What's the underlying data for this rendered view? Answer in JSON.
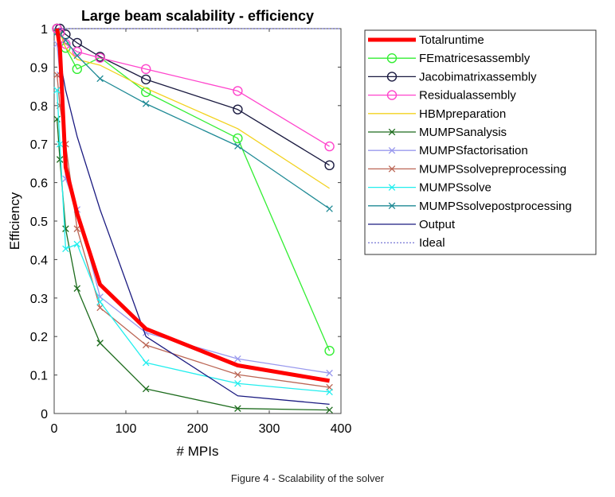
{
  "caption": "Figure 4 - Scalability of the solver",
  "chart_data": {
    "type": "line",
    "title": "Large beam scalability - efficiency",
    "xlabel": "# MPIs",
    "ylabel": "Efficiency",
    "xlim": [
      0,
      400
    ],
    "ylim": [
      0,
      1
    ],
    "xticks": [
      0,
      100,
      200,
      300,
      400
    ],
    "yticks": [
      0,
      0.1,
      0.2,
      0.3,
      0.4,
      0.5,
      0.6,
      0.7,
      0.8,
      0.9,
      1
    ],
    "grid": false,
    "legend_position": "outside-right",
    "x": [
      4,
      8,
      16,
      32,
      64,
      128,
      256,
      384
    ],
    "series": [
      {
        "name": "Totalruntime",
        "color": "#ff0000",
        "marker": "none",
        "width": 5,
        "values": [
          1.0,
          0.95,
          0.64,
          0.52,
          0.335,
          0.22,
          0.125,
          0.085
        ]
      },
      {
        "name": "FEmatricesassembly",
        "color": "#33ee33",
        "marker": "o",
        "width": 1.3,
        "values": [
          1.0,
          0.99,
          0.95,
          0.895,
          0.925,
          0.835,
          0.715,
          0.163
        ]
      },
      {
        "name": "Jacobimatrixassembly",
        "color": "#1a1a40",
        "marker": "o",
        "width": 1.3,
        "values": [
          1.0,
          1.0,
          0.985,
          0.963,
          0.927,
          0.868,
          0.79,
          0.645
        ]
      },
      {
        "name": "Residualassembly",
        "color": "#ff44cc",
        "marker": "o",
        "width": 1.3,
        "values": [
          1.0,
          0.99,
          0.96,
          0.94,
          0.924,
          0.895,
          0.838,
          0.694
        ]
      },
      {
        "name": "HBMpreparation",
        "color": "#f2d21f",
        "marker": "none",
        "width": 1.3,
        "values": [
          1.0,
          0.99,
          0.95,
          0.92,
          0.905,
          0.845,
          0.74,
          0.585
        ]
      },
      {
        "name": "MUMPSanalysis",
        "color": "#1c6b1c",
        "marker": "x",
        "width": 1.3,
        "values": [
          0.765,
          0.66,
          0.48,
          0.325,
          0.183,
          0.064,
          0.013,
          0.009
        ]
      },
      {
        "name": "MUMPSfactorisation",
        "color": "#9999ee",
        "marker": "x",
        "width": 1.3,
        "values": [
          0.96,
          0.88,
          0.61,
          0.53,
          0.303,
          0.21,
          0.142,
          0.105
        ]
      },
      {
        "name": "MUMPSsolvepreprocessing",
        "color": "#bb6655",
        "marker": "x",
        "width": 1.3,
        "values": [
          0.88,
          0.8,
          0.7,
          0.48,
          0.275,
          0.178,
          0.101,
          0.068
        ]
      },
      {
        "name": "MUMPSsolve",
        "color": "#22eeee",
        "marker": "x",
        "width": 1.3,
        "values": [
          0.84,
          0.7,
          0.428,
          0.44,
          0.29,
          0.132,
          0.078,
          0.056
        ]
      },
      {
        "name": "MUMPSsolvepostprocessing",
        "color": "#1f8a95",
        "marker": "x",
        "width": 1.3,
        "values": [
          0.99,
          0.985,
          0.97,
          0.93,
          0.87,
          0.805,
          0.695,
          0.532
        ]
      },
      {
        "name": "Output",
        "color": "#1a1a80",
        "marker": "none",
        "width": 1.3,
        "values": [
          1.0,
          0.92,
          0.84,
          0.72,
          0.53,
          0.2,
          0.046,
          0.024
        ]
      },
      {
        "name": "Ideal",
        "color": "#5555cc",
        "marker": "none",
        "width": 1,
        "dashed": true,
        "x": [
          0,
          400
        ],
        "values": [
          1,
          1
        ]
      }
    ]
  }
}
